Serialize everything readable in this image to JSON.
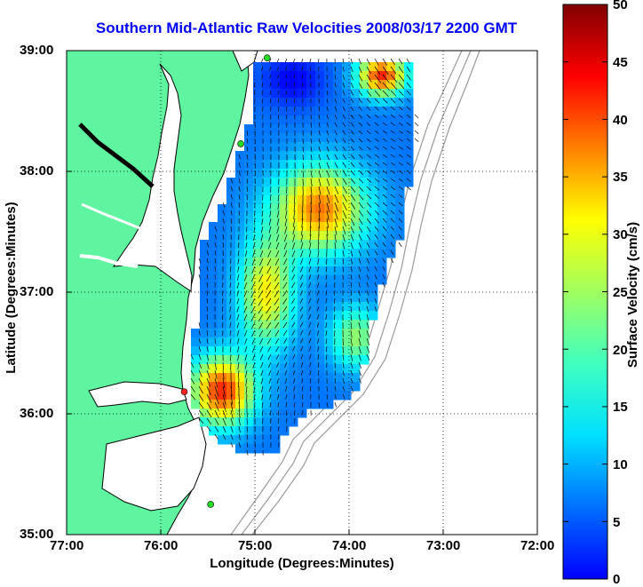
{
  "title": "Southern Mid-Atlantic Raw Velocities 2008/03/17 2200 GMT",
  "axes": {
    "xlabel": "Longitude (Degrees:Minutes)",
    "ylabel": "Latitude (Degrees:Minutes)",
    "xticks": [
      "77:00",
      "76:00",
      "75:00",
      "74:00",
      "73:00",
      "72:00"
    ],
    "yticks": [
      "39:00",
      "38:00",
      "37:00",
      "36:00",
      "35:00"
    ],
    "xlim_deg_west": [
      77,
      72
    ],
    "ylim_deg_north": [
      35,
      39
    ],
    "grid": true
  },
  "colorbar": {
    "label": "Surface Velocity (cm/s)",
    "ticks": [
      "50",
      "45",
      "40",
      "35",
      "30",
      "25",
      "20",
      "15",
      "10",
      "5",
      "0"
    ],
    "range": [
      0,
      50
    ],
    "colormap": "jet"
  },
  "colors": {
    "land": "#5ff5a0",
    "coast": "#000000",
    "bathymetry": "#9a9a9a",
    "site_active": "#22dd22",
    "site_highlight": "#ff2222"
  },
  "sites": [
    {
      "lon": -74.87,
      "lat": 38.94,
      "status": "active"
    },
    {
      "lon": -75.15,
      "lat": 38.23,
      "status": "active"
    },
    {
      "lon": -75.75,
      "lat": 36.18,
      "status": "highlight"
    },
    {
      "lon": -75.47,
      "lat": 35.25,
      "status": "active"
    }
  ]
}
